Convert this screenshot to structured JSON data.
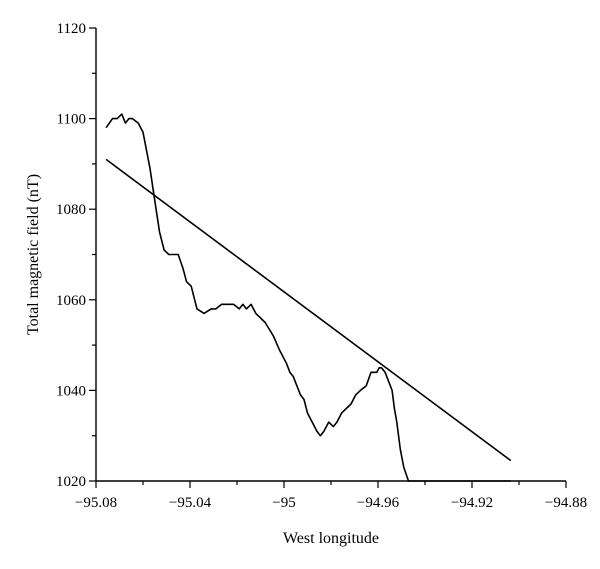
{
  "chart_data": {
    "type": "line",
    "title": "",
    "xlabel": "West longitude",
    "ylabel": "Total magnetic field (nT)",
    "xlim": [
      -95.08,
      -94.88
    ],
    "ylim": [
      1020,
      1120
    ],
    "xticks": [
      -95.08,
      -95.04,
      -95,
      -94.96,
      -94.92,
      -94.88
    ],
    "xtick_labels": [
      "−95.08",
      "−95.04",
      "−95",
      "−94.96",
      "−94.92",
      "−94.88"
    ],
    "yticks": [
      1020,
      1040,
      1060,
      1080,
      1100,
      1120
    ],
    "ytick_labels": [
      "1020",
      "1040",
      "1060",
      "1080",
      "1100",
      "1120"
    ],
    "grid": false,
    "series": [
      {
        "x": [
          -95.0757,
          -95.073,
          -95.071,
          -95.069,
          -95.0675,
          -95.066,
          -95.0645,
          -95.062,
          -95.06,
          -95.0585,
          -95.057,
          -95.055,
          -95.053,
          -95.051,
          -95.049,
          -95.047,
          -95.045,
          -95.043,
          -95.0415,
          -95.0395,
          -95.037,
          -95.034,
          -95.031,
          -95.029,
          -95.0265,
          -95.025,
          -95.023,
          -95.0215,
          -95.019,
          -95.0175,
          -95.016,
          -95.014,
          -95.012,
          -95.01,
          -95.008,
          -95.0045,
          -95.002,
          -94.999,
          -94.9975,
          -94.996,
          -94.9945,
          -94.993,
          -94.9915,
          -94.99,
          -94.988,
          -94.986,
          -94.9845,
          -94.983,
          -94.981,
          -94.979,
          -94.9775,
          -94.9755,
          -94.9735,
          -94.9715,
          -94.9695,
          -94.9675,
          -94.965,
          -94.963,
          -94.9615,
          -94.9605,
          -94.9595,
          -94.9585,
          -94.957,
          -94.9555,
          -94.954,
          -94.953,
          -94.952,
          -94.9505,
          -94.949,
          -94.947,
          -94.945,
          -94.943,
          -94.941,
          -94.939,
          -94.9375,
          -94.936,
          -94.934,
          -94.9325,
          -94.9305,
          -94.9285,
          -94.9265,
          -94.925,
          -94.923,
          -94.921,
          -94.919,
          -94.917,
          -94.9155,
          -94.914,
          -94.912,
          -94.91,
          -94.908,
          -94.906,
          -94.9045,
          -94.9035
        ],
        "y": [
          1098,
          1100,
          1100,
          1101,
          1099,
          1100,
          1100,
          1099,
          1097,
          1093,
          1089,
          1082,
          1075,
          1071,
          1070,
          1070,
          1070,
          1067,
          1064,
          1063,
          1058,
          1057,
          1058,
          1058,
          1059,
          1059,
          1059,
          1059,
          1058,
          1059,
          1058,
          1059,
          1057,
          1056,
          1055,
          1052,
          1049,
          1046,
          1044,
          1043,
          1041,
          1039,
          1038,
          1035,
          1033,
          1031,
          1030,
          1031,
          1033,
          1032,
          1033,
          1035,
          1036,
          1037,
          1039,
          1040,
          1041,
          1044,
          1044,
          1044,
          1045,
          1045,
          1044,
          1042,
          1040,
          1036,
          1033,
          1027,
          1023,
          1020,
          1020,
          1020,
          1020,
          1020,
          1020,
          1020,
          1020,
          1020,
          1020,
          1020,
          1020,
          1020,
          1020,
          1020,
          1020,
          1020,
          1020,
          1020,
          1020,
          1020,
          1020,
          1020,
          1020,
          1020
        ]
      },
      {
        "x": [
          -95.0757,
          -94.9035
        ],
        "y": [
          1091,
          1024.5
        ]
      }
    ]
  }
}
